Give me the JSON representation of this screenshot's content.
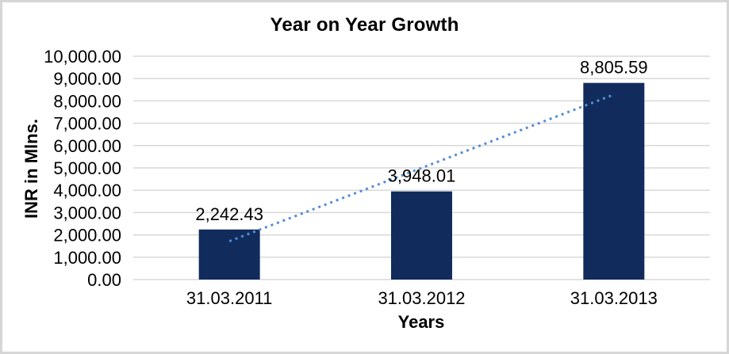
{
  "window": {
    "background_color": "#FFFFFF",
    "border_color": "#D6D6D6"
  },
  "chart_data": {
    "type": "bar",
    "title": "Year on Year Growth",
    "xlabel": "Years",
    "ylabel": "INR in Mlns.",
    "categories": [
      "31.03.2011",
      "31.03.2012",
      "31.03.2013"
    ],
    "values": [
      2242.43,
      3948.01,
      8805.59
    ],
    "data_labels": [
      "2,242.43",
      "3,948.01",
      "8,805.59"
    ],
    "ylim": [
      0,
      10000
    ],
    "ystep": 1000,
    "ytick_labels": [
      "0.00",
      "1,000.00",
      "2,000.00",
      "3,000.00",
      "4,000.00",
      "5,000.00",
      "6,000.00",
      "7,000.00",
      "8,000.00",
      "9,000.00",
      "10,000.00"
    ],
    "grid": true,
    "legend": "none",
    "bar_color": "#112C5C",
    "gridline_color": "#D9D9D9",
    "axis_line_color": "#D9D9D9",
    "label_color": "#000000",
    "trendline": {
      "style": "dotted",
      "color": "#548DD4",
      "values": [
        1717.1,
        4998.68,
        8280.26
      ]
    }
  }
}
